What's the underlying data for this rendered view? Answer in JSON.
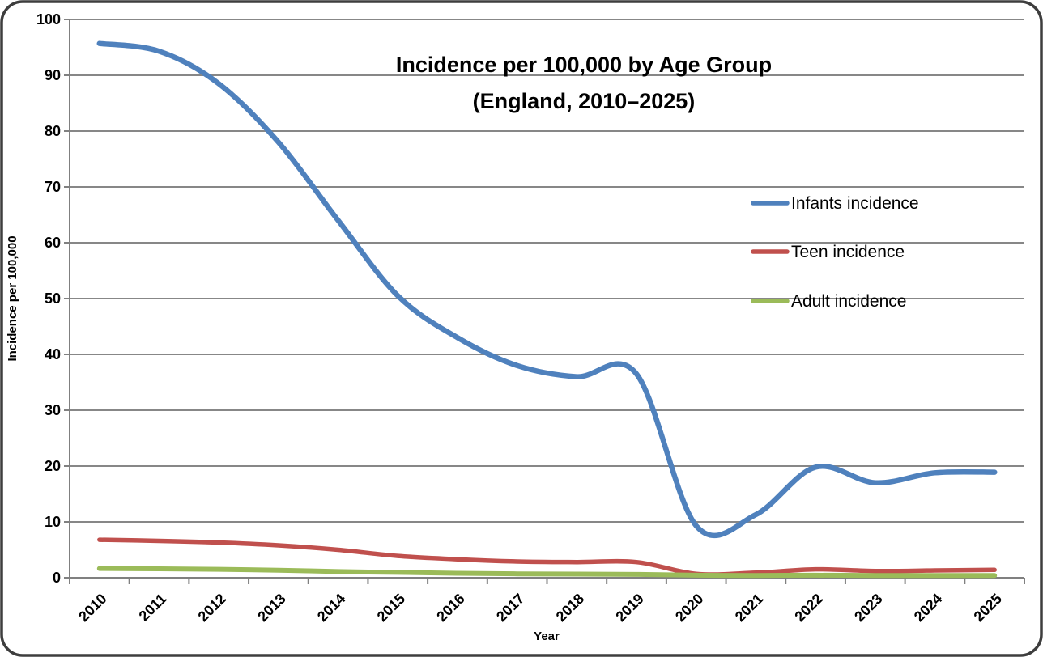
{
  "chart_data": {
    "type": "line",
    "smoothed": true,
    "title_line1": "Incidence per 100,000 by Age Group",
    "title_line2": "(England, 2010–2025)",
    "xlabel": "Year",
    "ylabel": "Incidence per 100,000",
    "x_categories": [
      "2010",
      "2011",
      "2012",
      "2013",
      "2014",
      "2015",
      "2016",
      "2017",
      "2018",
      "2019",
      "2020",
      "2021",
      "2022",
      "2023",
      "2024",
      "2025"
    ],
    "ylim": [
      0,
      100
    ],
    "ytick_interval": 10,
    "yticks": [
      0,
      10,
      20,
      30,
      40,
      50,
      60,
      70,
      80,
      90,
      100
    ],
    "grid": true,
    "legend_position": "right-inside",
    "series": [
      {
        "name": "Infants incidence",
        "color": "#4F81BD",
        "values": [
          95.7,
          94.3,
          88.5,
          78,
          64,
          50.5,
          43,
          38,
          36,
          36.5,
          9.3,
          11.3,
          19.8,
          17,
          18.8,
          18.9
        ]
      },
      {
        "name": "Teen incidence",
        "color": "#C0504D",
        "values": [
          6.8,
          6.6,
          6.3,
          5.8,
          5.0,
          3.9,
          3.3,
          2.9,
          2.8,
          2.8,
          0.7,
          0.9,
          1.5,
          1.2,
          1.3,
          1.4
        ]
      },
      {
        "name": "Adult incidence",
        "color": "#9BBB59",
        "values": [
          1.65,
          1.6,
          1.5,
          1.35,
          1.1,
          0.95,
          0.8,
          0.7,
          0.65,
          0.6,
          0.45,
          0.4,
          0.45,
          0.4,
          0.4,
          0.4
        ]
      }
    ]
  },
  "colors": {
    "background": "#FFFFFF",
    "gridline": "#878787",
    "axis": "#808080",
    "border": "#3E3E3E",
    "text": "#000000"
  }
}
